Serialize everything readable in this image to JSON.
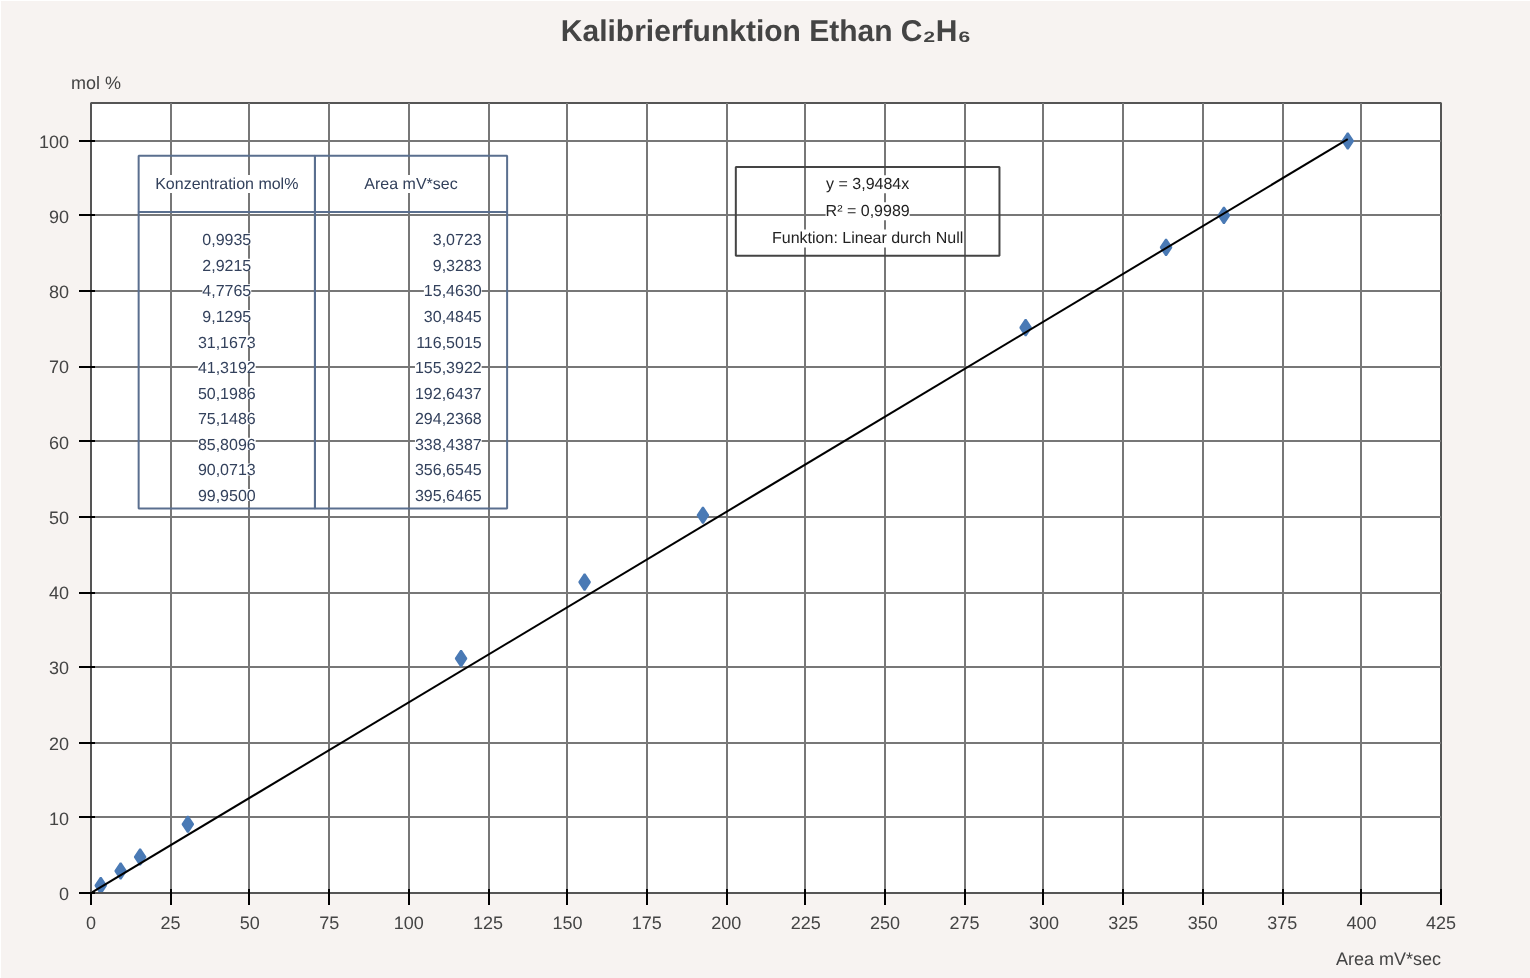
{
  "chart_data": {
    "type": "scatter",
    "title": "Kalibrierfunktion Ethan C₂H₆",
    "xlabel": "Area mV*sec",
    "ylabel": "mol %",
    "series": [
      {
        "color": "#4a7ab5",
        "marker": "diamond",
        "x": [
          3.0723,
          9.3283,
          15.463,
          30.4845,
          116.5015,
          155.3922,
          192.6437,
          294.2368,
          338.4387,
          356.6545,
          395.6465
        ],
        "values": [
          0.9935,
          2.9215,
          4.7765,
          9.1295,
          31.1673,
          41.3192,
          50.1986,
          75.1486,
          85.8096,
          90.0713,
          99.95
        ]
      },
      {
        "type": "line",
        "color": "#000000",
        "x": [
          0,
          395.6465
        ],
        "values": [
          0,
          100.2
        ]
      }
    ],
    "annotations": [
      "Konzentration mol%",
      "Area mV*sec",
      "0,9935",
      "3,0723",
      "2,9215",
      "9,3283",
      "4,7765",
      "15,4630",
      "9,1295",
      "30,4845",
      "31,1673",
      "116,5015",
      "41,3192",
      "155,3922",
      "50,1986",
      "192,6437",
      "75,1486",
      "294,2368",
      "85,8096",
      "338,4387",
      "90,0713",
      "356,6545",
      "99,9500",
      "395,6465",
      "y = 3,9484x",
      "R² = 0,9989",
      "Funktion: Linear durch Null"
    ],
    "xlim": [
      0,
      425
    ],
    "ylim": [
      0,
      105
    ],
    "xticks": [
      0,
      25,
      50,
      75,
      100,
      125,
      150,
      175,
      200,
      225,
      250,
      275,
      300,
      325,
      350,
      375,
      400,
      425
    ],
    "yticks": [
      0,
      10,
      20,
      30,
      40,
      50,
      60,
      70,
      80,
      90,
      100
    ],
    "grid": true
  }
}
